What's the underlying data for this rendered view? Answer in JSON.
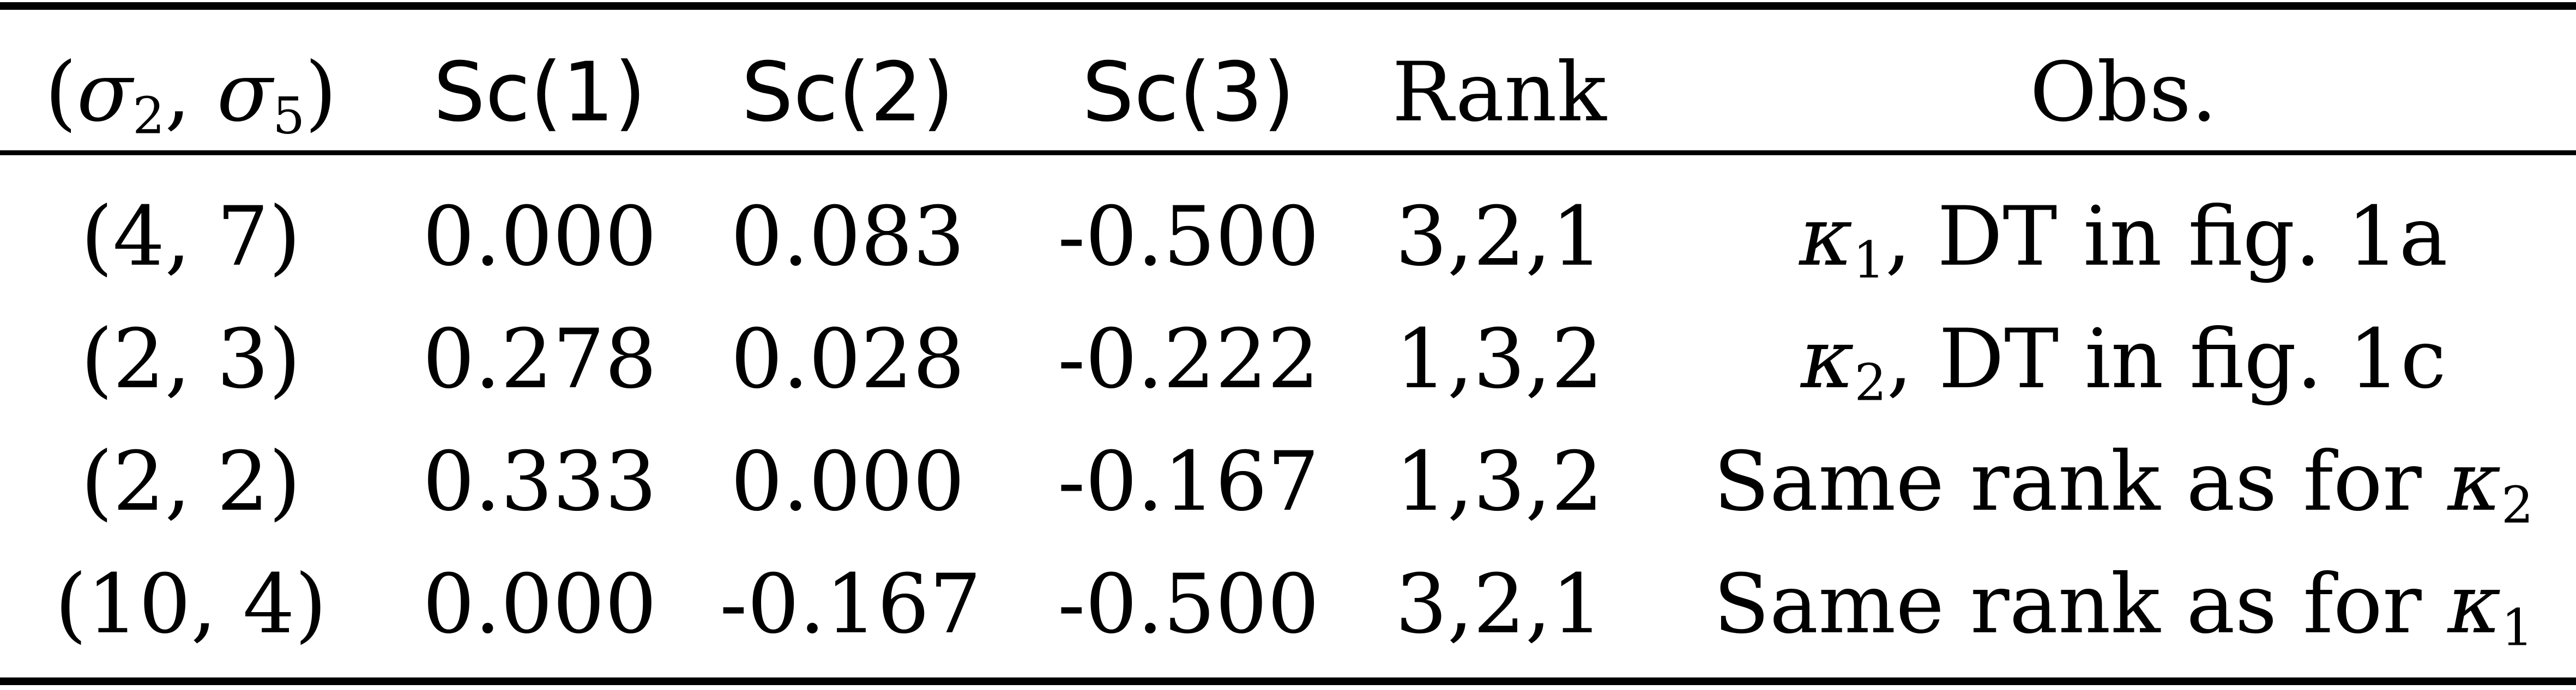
{
  "table": {
    "header": {
      "sigma_pair": "(σ2, σ5)",
      "sc1": "Sc(1)",
      "sc2": "Sc(2)",
      "sc3": "Sc(3)",
      "rank": "Rank",
      "obs": "Obs."
    },
    "rows": [
      {
        "sigma": "(4, 7)",
        "sc1": "0.000",
        "sc2": "0.083",
        "sc3": "-0.500",
        "rank": "3,2,1",
        "obs": "κ1, DT in fig. 1a"
      },
      {
        "sigma": "(2, 3)",
        "sc1": "0.278",
        "sc2": "0.028",
        "sc3": "-0.222",
        "rank": "1,3,2",
        "obs": "κ2, DT in fig. 1c"
      },
      {
        "sigma": "(2, 2)",
        "sc1": "0.333",
        "sc2": "0.000",
        "sc3": "-0.167",
        "rank": "1,3,2",
        "obs": "Same rank as for κ2"
      },
      {
        "sigma": "(10, 4)",
        "sc1": "0.000",
        "sc2": "-0.167",
        "sc3": "-0.500",
        "rank": "3,2,1",
        "obs": "Same rank as for κ1"
      }
    ]
  }
}
